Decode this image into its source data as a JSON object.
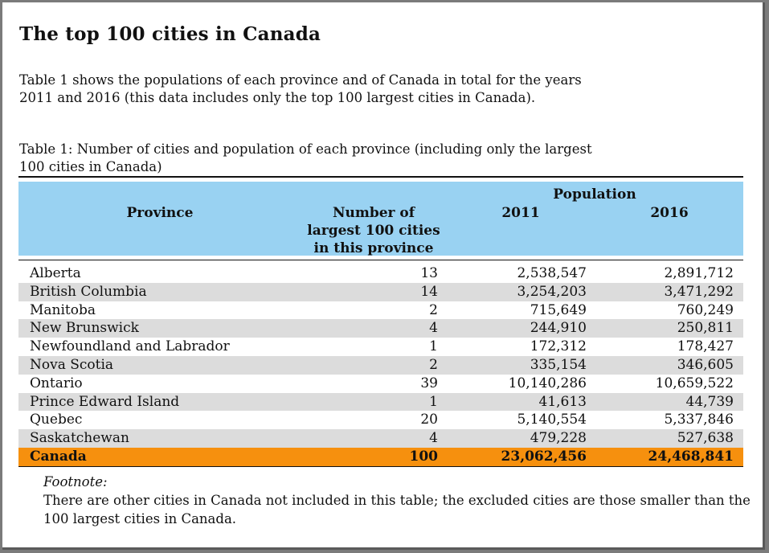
{
  "title": "The top 100 cities in Canada",
  "intro": "Table 1 shows the populations of each province and of Canada in total for the years 2011 and 2016 (this data includes only the top 100 largest cities in Canada).",
  "caption": "Table 1: Number of cities and population of each province (including only the largest 100 cities in Canada)",
  "table": {
    "headers": {
      "province": "Province",
      "number": [
        "Number of",
        "largest 100 cities",
        "in this province"
      ],
      "population": "Population",
      "year_2011": "2011",
      "year_2016": "2016"
    },
    "rows": [
      {
        "province": "Alberta",
        "number": "13",
        "pop_2011": "2,538,547",
        "pop_2016": "2,891,712"
      },
      {
        "province": "British Columbia",
        "number": "14",
        "pop_2011": "3,254,203",
        "pop_2016": "3,471,292"
      },
      {
        "province": "Manitoba",
        "number": "2",
        "pop_2011": "715,649",
        "pop_2016": "760,249"
      },
      {
        "province": "New Brunswick",
        "number": "4",
        "pop_2011": "244,910",
        "pop_2016": "250,811"
      },
      {
        "province": "Newfoundland and Labrador",
        "number": "1",
        "pop_2011": "172,312",
        "pop_2016": "178,427"
      },
      {
        "province": "Nova Scotia",
        "number": "2",
        "pop_2011": "335,154",
        "pop_2016": "346,605"
      },
      {
        "province": "Ontario",
        "number": "39",
        "pop_2011": "10,140,286",
        "pop_2016": "10,659,522"
      },
      {
        "province": "Prince Edward Island",
        "number": "1",
        "pop_2011": "41,613",
        "pop_2016": "44,739"
      },
      {
        "province": "Quebec",
        "number": "20",
        "pop_2011": "5,140,554",
        "pop_2016": "5,337,846"
      },
      {
        "province": "Saskatchewan",
        "number": "4",
        "pop_2011": "479,228",
        "pop_2016": "527,638"
      }
    ],
    "total": {
      "province": "Canada",
      "number": "100",
      "pop_2011": "23,062,456",
      "pop_2016": "24,468,841"
    }
  },
  "footnote": {
    "label": "Footnote:",
    "text": "There are other cities in Canada not included in this table; the excluded cities are those smaller than the 100 largest cities in Canada."
  },
  "colors": {
    "header_bg": "#99d2f2",
    "alt_row_bg": "#dcdcdc",
    "total_row_bg": "#f6900e"
  }
}
